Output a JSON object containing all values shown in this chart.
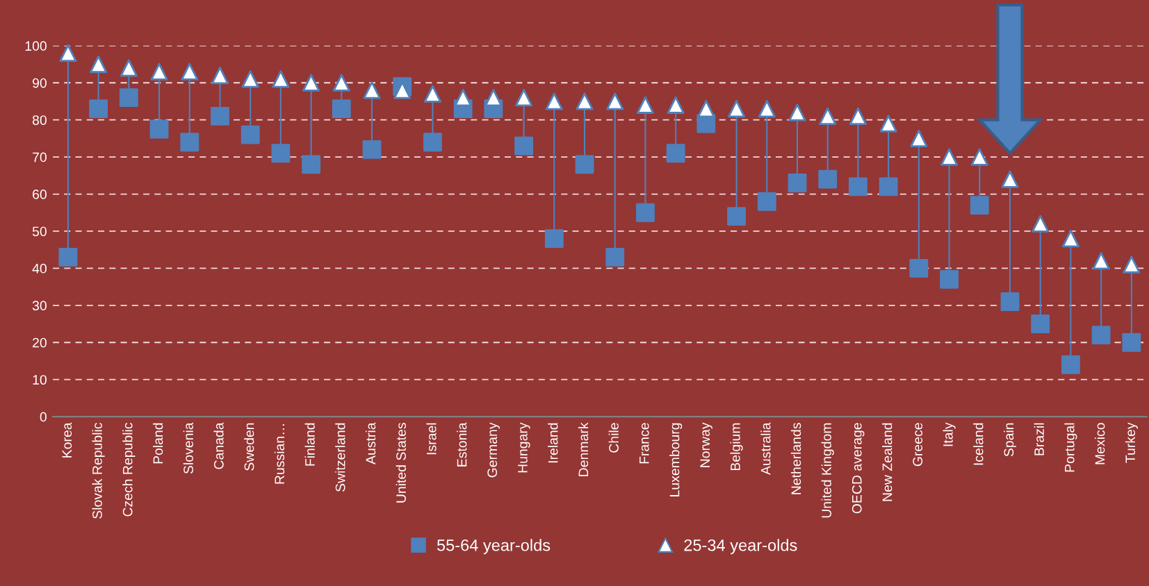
{
  "chart_data": {
    "type": "scatter",
    "categories": [
      "Korea",
      "Slovak Republic",
      "Czech Republic",
      "Poland",
      "Slovenia",
      "Canada",
      "Sweden",
      "Russian…",
      "Finland",
      "Switzerland",
      "Austria",
      "United States",
      "Israel",
      "Estonia",
      "Germany",
      "Hungary",
      "Ireland",
      "Denmark",
      "Chile",
      "France",
      "Luxembourg",
      "Norway",
      "Belgium",
      "Australia",
      "Netherlands",
      "United Kingdom",
      "OECD average",
      "New Zealand",
      "Greece",
      "Italy",
      "Iceland",
      "Spain",
      "Brazil",
      "Portugal",
      "Mexico",
      "Turkey"
    ],
    "series": [
      {
        "name": "55-64 year-olds",
        "color": "#4f81bd",
        "marker": "square",
        "values": [
          43,
          83,
          86,
          77.5,
          74,
          81,
          76,
          71,
          68,
          83,
          72,
          89,
          74,
          83,
          83,
          73,
          48,
          68,
          43,
          55,
          71,
          79,
          54,
          58,
          63,
          64,
          62,
          62,
          40,
          37,
          57,
          31,
          25,
          14,
          22,
          20
        ]
      },
      {
        "name": "25-34 year-olds",
        "color": "#ffffff",
        "marker": "triangle",
        "values": [
          98,
          95,
          94,
          93,
          93,
          92,
          91,
          91,
          90,
          90,
          88,
          88,
          87,
          86,
          86,
          86,
          85,
          85,
          85,
          84,
          84,
          83,
          83,
          83,
          82,
          81,
          81,
          79,
          75,
          70,
          70,
          64,
          52,
          48,
          42,
          41
        ]
      }
    ],
    "ylim": [
      0,
      100
    ],
    "yticks": [
      0,
      10,
      20,
      30,
      40,
      50,
      60,
      70,
      80,
      90,
      100
    ],
    "grid": "y",
    "legend": "bottom"
  }
}
